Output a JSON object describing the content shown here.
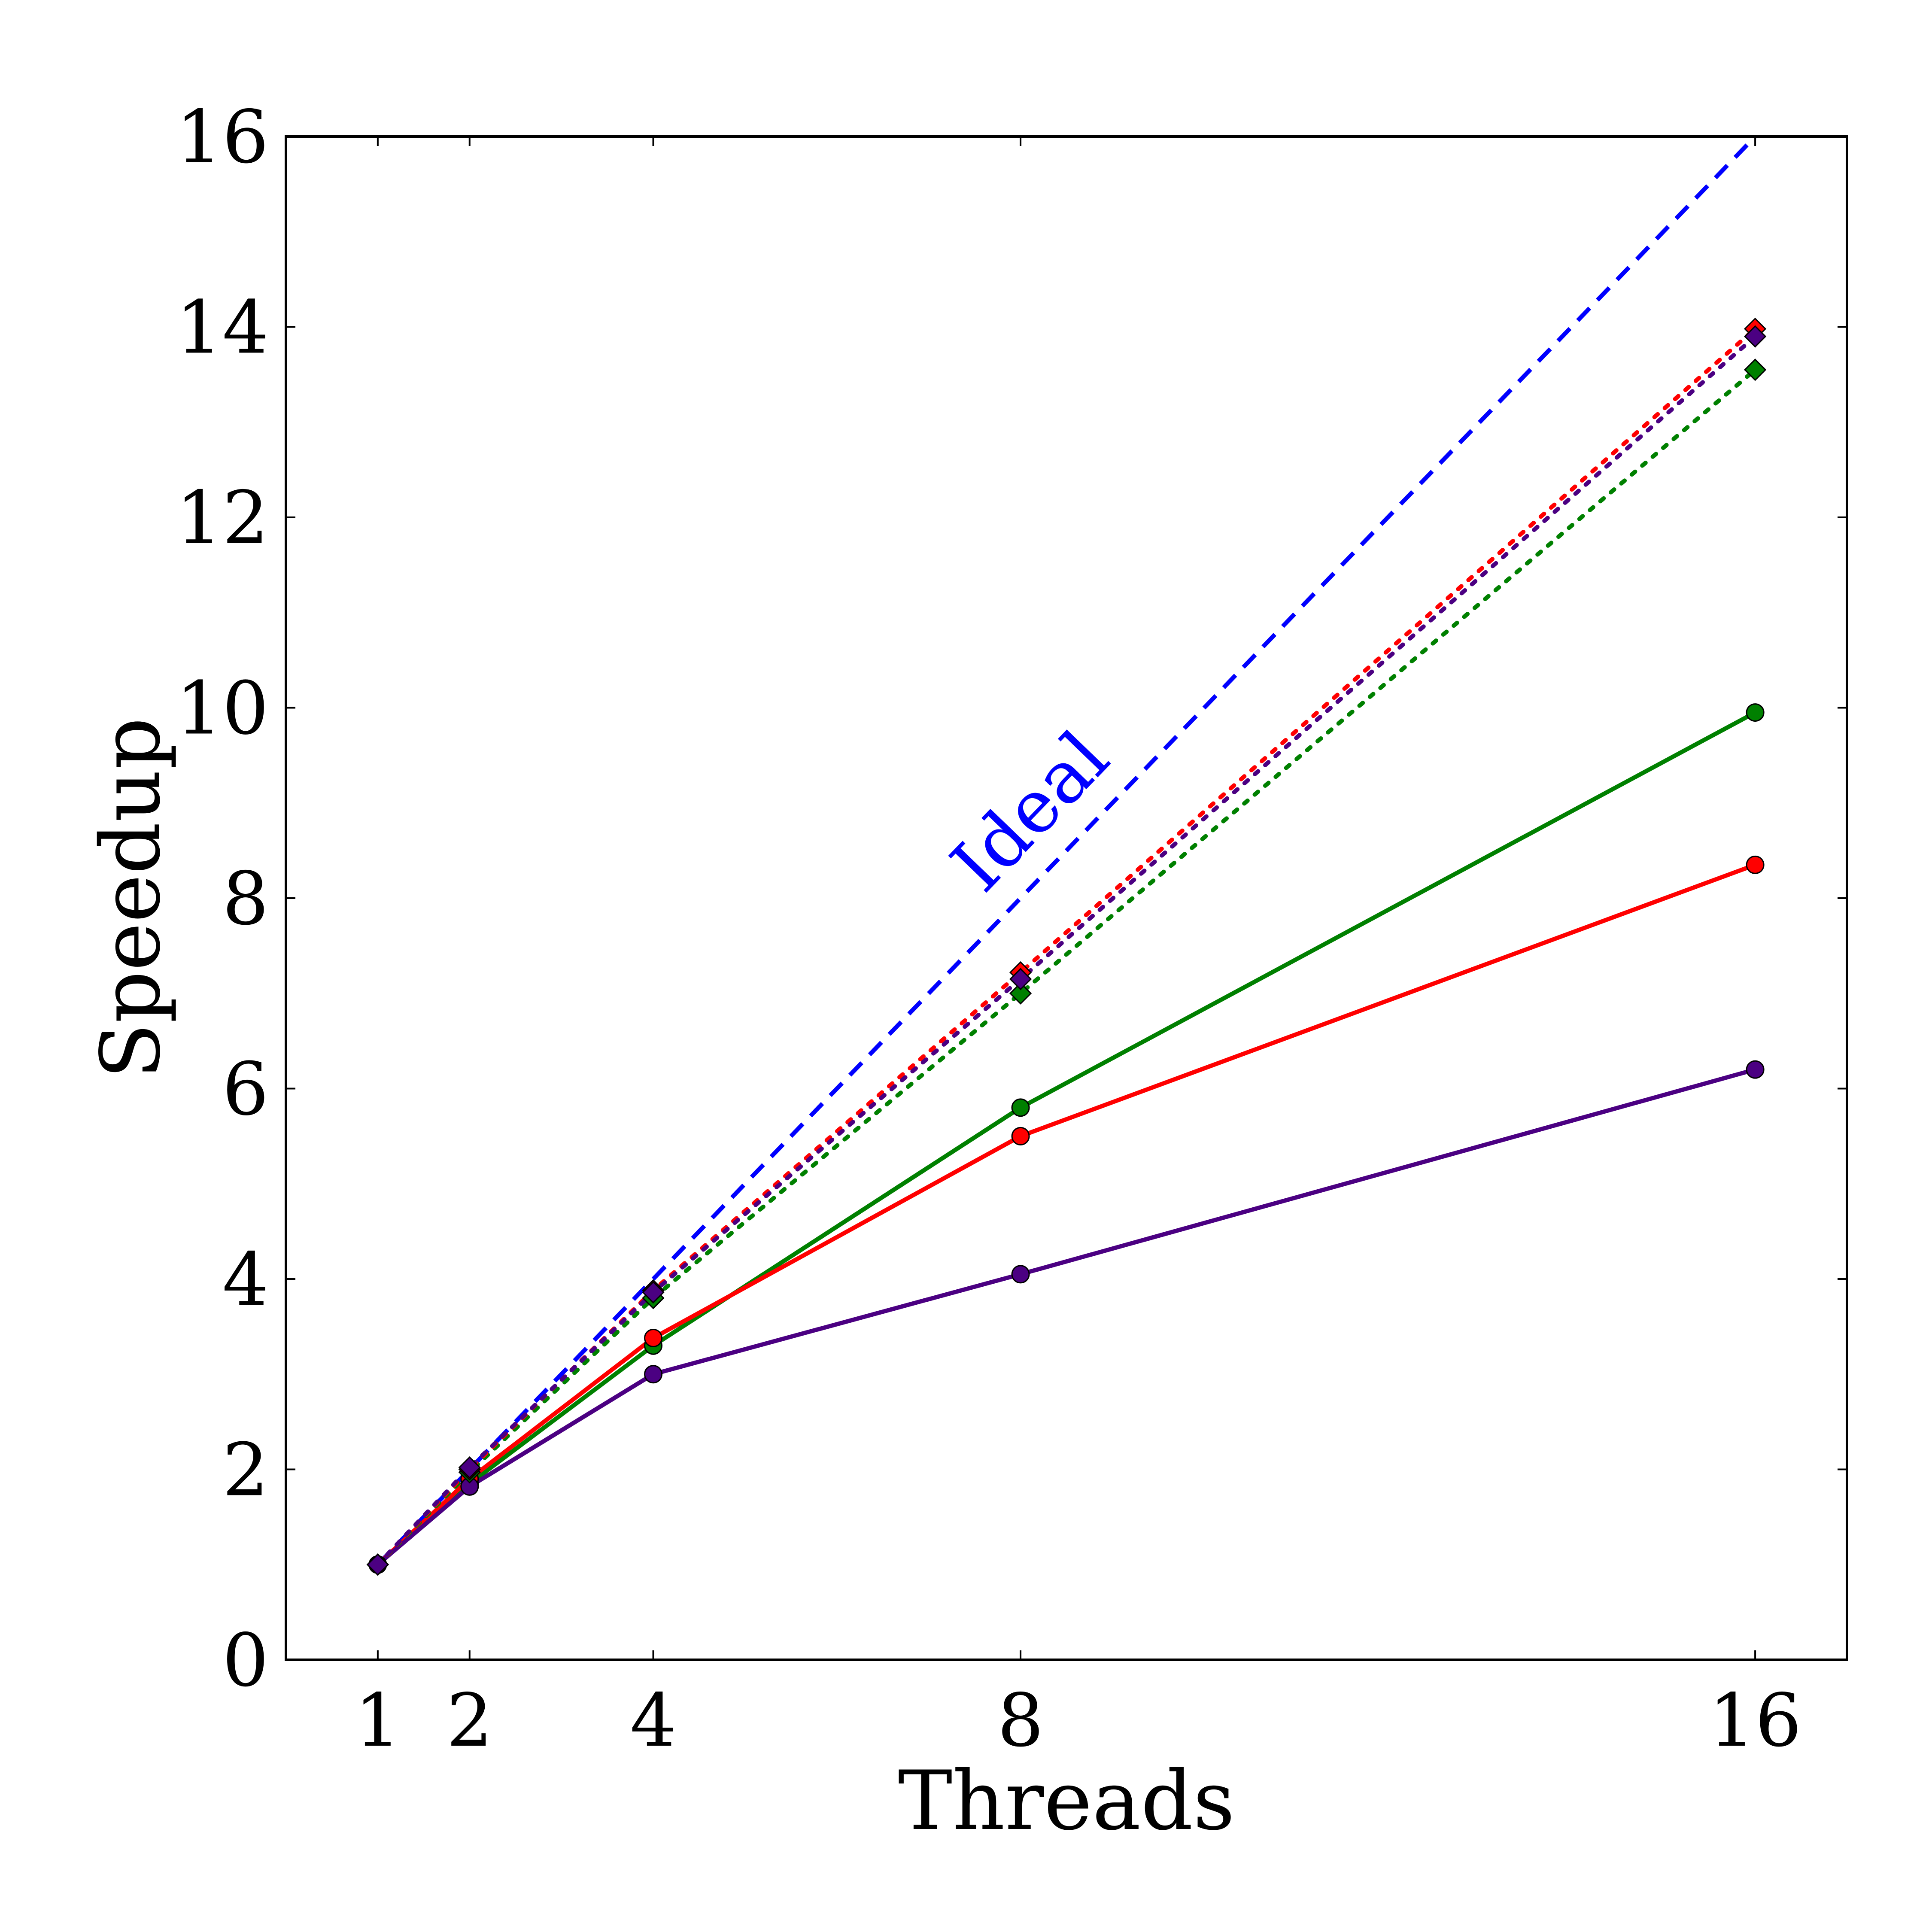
{
  "chart_data": {
    "type": "line",
    "xlabel": "Threads",
    "ylabel": "Speedup",
    "xlim": [
      0,
      17
    ],
    "ylim": [
      0,
      16
    ],
    "xticks": [
      1,
      2,
      4,
      8,
      16
    ],
    "yticks": [
      0,
      2,
      4,
      6,
      8,
      10,
      12,
      14,
      16
    ],
    "grid": false,
    "ideal": {
      "label": "Ideal",
      "color": "#0000ff",
      "style": "dashed",
      "x": [
        1,
        16
      ],
      "y": [
        1,
        16
      ]
    },
    "series": [
      {
        "color": "#008000",
        "style": "solid",
        "marker": "circle",
        "x": [
          1,
          2,
          4,
          8,
          16
        ],
        "y": [
          1.0,
          1.85,
          3.3,
          5.8,
          9.95
        ]
      },
      {
        "color": "#ff0000",
        "style": "solid",
        "marker": "circle",
        "x": [
          1,
          2,
          4,
          8,
          16
        ],
        "y": [
          1.0,
          1.9,
          3.38,
          5.5,
          8.35
        ]
      },
      {
        "color": "#4b0082",
        "style": "solid",
        "marker": "circle",
        "x": [
          1,
          2,
          4,
          8,
          16
        ],
        "y": [
          1.0,
          1.82,
          3.0,
          4.05,
          6.2
        ]
      },
      {
        "color": "#008000",
        "style": "dotted",
        "marker": "diamond",
        "x": [
          1,
          2,
          4,
          8,
          16
        ],
        "y": [
          1.0,
          1.97,
          3.8,
          7.0,
          13.55
        ]
      },
      {
        "color": "#ff0000",
        "style": "dotted",
        "marker": "diamond",
        "x": [
          1,
          2,
          4,
          8,
          16
        ],
        "y": [
          1.0,
          2.0,
          3.88,
          7.22,
          13.98
        ]
      },
      {
        "color": "#4b0082",
        "style": "dotted",
        "marker": "diamond",
        "x": [
          1,
          2,
          4,
          8,
          16
        ],
        "y": [
          1.0,
          2.02,
          3.86,
          7.15,
          13.9
        ]
      }
    ]
  }
}
